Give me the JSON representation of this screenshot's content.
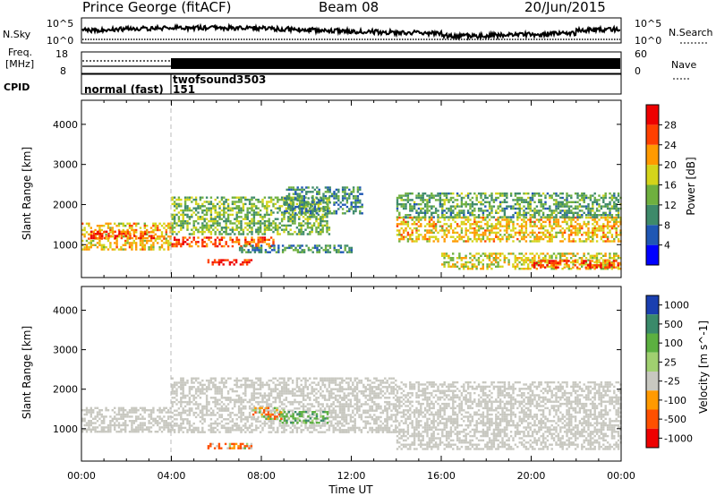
{
  "header": {
    "station": "Prince George (fitACF)",
    "beam": "Beam 08",
    "date": "20/Jun/2015"
  },
  "nsky_panel": {
    "label": "N.Sky",
    "right_label": "N.Search",
    "left_ticks": [
      "10^5",
      "10^0"
    ],
    "right_ticks": [
      "10^5",
      "10^0"
    ]
  },
  "freq_panel": {
    "label_lines": [
      "Freq.",
      "[MHz]"
    ],
    "right_label": "Nave",
    "left_ticks": [
      "18",
      "8"
    ],
    "right_ticks": [
      "60",
      "0"
    ]
  },
  "cpid_panel": {
    "label": "CPID",
    "programs": [
      {
        "name": "normal (fast)",
        "id": "151",
        "start_hour": 0
      },
      {
        "name": "twofsound",
        "id": "3503",
        "start_hour": 4
      }
    ]
  },
  "chart_data": [
    {
      "type": "heatmap",
      "name": "power",
      "xlabel": "",
      "ylabel": "Slant Range [km]",
      "xlim": [
        0,
        24
      ],
      "ylim": [
        180,
        4600
      ],
      "yticks": [
        "1000",
        "2000",
        "3000",
        "4000"
      ],
      "colorbar": {
        "label": "Power [dB]",
        "ticks": [
          "4",
          "8",
          "12",
          "16",
          "20",
          "24",
          "28"
        ],
        "colors": [
          "#0000ff",
          "#1f57b4",
          "#3e8a6a",
          "#6fb03f",
          "#d4d41a",
          "#ff9a00",
          "#ff4000",
          "#ee0000"
        ]
      },
      "echo_bands": [
        {
          "t0": 0.0,
          "t1": 4.0,
          "r0": 900,
          "r1": 1550,
          "level": 20
        },
        {
          "t0": 0.4,
          "t1": 3.2,
          "r0": 1150,
          "r1": 1350,
          "level": 26
        },
        {
          "t0": 4.0,
          "t1": 8.5,
          "r0": 950,
          "r1": 1200,
          "level": 26
        },
        {
          "t0": 4.0,
          "t1": 11.0,
          "r0": 1250,
          "r1": 2200,
          "level": 14
        },
        {
          "t0": 5.6,
          "t1": 7.6,
          "r0": 480,
          "r1": 640,
          "level": 28
        },
        {
          "t0": 7.0,
          "t1": 12.0,
          "r0": 800,
          "r1": 1000,
          "level": 10
        },
        {
          "t0": 9.0,
          "t1": 12.5,
          "r0": 1800,
          "r1": 2450,
          "level": 10
        },
        {
          "t0": 14.0,
          "t1": 24.0,
          "r0": 1100,
          "r1": 1700,
          "level": 20
        },
        {
          "t0": 14.0,
          "t1": 24.0,
          "r0": 1700,
          "r1": 2300,
          "level": 12
        },
        {
          "t0": 16.0,
          "t1": 24.0,
          "r0": 400,
          "r1": 800,
          "level": 18
        },
        {
          "t0": 20.0,
          "t1": 24.0,
          "r0": 450,
          "r1": 620,
          "level": 26
        }
      ]
    },
    {
      "type": "heatmap",
      "name": "velocity",
      "xlabel": "Time UT",
      "ylabel": "Slant Range [km]",
      "xlim": [
        0,
        24
      ],
      "ylim": [
        180,
        4600
      ],
      "xticks": [
        "00:00",
        "04:00",
        "08:00",
        "12:00",
        "16:00",
        "20:00",
        "00:00"
      ],
      "yticks": [
        "1000",
        "2000",
        "3000",
        "4000"
      ],
      "colorbar": {
        "label": "Velocity [m s^-1]",
        "ticks": [
          "1000",
          "500",
          "100",
          "25",
          "-25",
          "-100",
          "-500",
          "-1000"
        ],
        "colors": [
          "#1a3fb0",
          "#3a8a6a",
          "#5cb040",
          "#a0d070",
          "#c8c8c0",
          "#ff9a00",
          "#ff5000",
          "#ee0000"
        ]
      },
      "echo_bands": [
        {
          "t0": 0.0,
          "t1": 4.0,
          "r0": 950,
          "r1": 1550,
          "level": 0
        },
        {
          "t0": 4.0,
          "t1": 14.0,
          "r0": 900,
          "r1": 2300,
          "level": 0
        },
        {
          "t0": 8.8,
          "t1": 11.0,
          "r0": 1150,
          "r1": 1450,
          "level": 300
        },
        {
          "t0": 7.6,
          "t1": 9.0,
          "r0": 1250,
          "r1": 1550,
          "level": -150
        },
        {
          "t0": 5.6,
          "t1": 7.6,
          "r0": 480,
          "r1": 640,
          "level": -150
        },
        {
          "t0": 14.0,
          "t1": 24.0,
          "r0": 500,
          "r1": 2200,
          "level": 0
        }
      ]
    }
  ]
}
